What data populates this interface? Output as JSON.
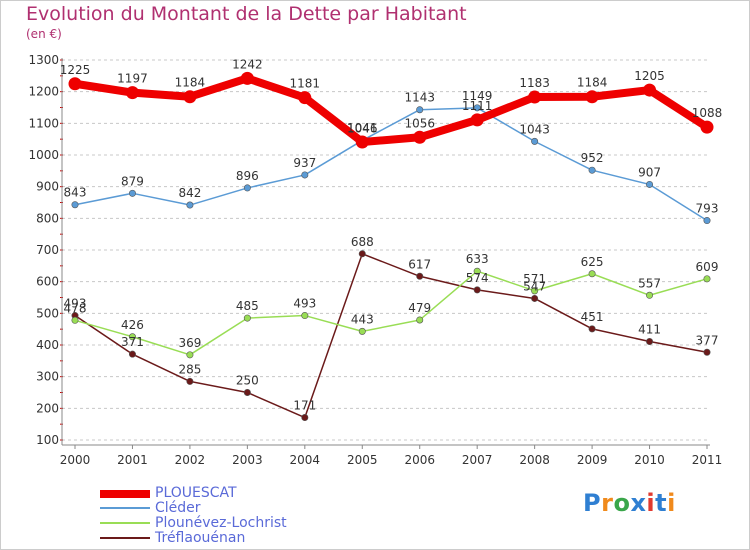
{
  "chart_data": {
    "type": "line",
    "title": "Evolution du Montant de la Dette par Habitant",
    "subtitle": "(en €)",
    "x": [
      2000,
      2001,
      2002,
      2003,
      2004,
      2005,
      2006,
      2007,
      2008,
      2009,
      2010,
      2011
    ],
    "ylim": [
      100,
      1300
    ],
    "yticks": [
      100,
      200,
      300,
      400,
      500,
      600,
      700,
      800,
      900,
      1000,
      1100,
      1200,
      1300
    ],
    "grid": "horizontal dashed",
    "legend_position": "bottom-left",
    "series": [
      {
        "name": "PLOUESCAT",
        "color": "#ee0000",
        "values": [
          1225,
          1197,
          1184,
          1242,
          1181,
          1041,
          1056,
          1111,
          1183,
          1184,
          1205,
          1088
        ]
      },
      {
        "name": "Cléder",
        "color": "#5b9bd5",
        "values": [
          843,
          879,
          842,
          896,
          937,
          1046,
          1143,
          1149,
          1043,
          952,
          907,
          793
        ]
      },
      {
        "name": "Plounévez-Lochrist",
        "color": "#99dd55",
        "values": [
          478,
          426,
          369,
          485,
          493,
          443,
          479,
          633,
          571,
          625,
          557,
          609
        ]
      },
      {
        "name": "Tréflaouénan",
        "color": "#6b1a1a",
        "values": [
          493,
          371,
          285,
          250,
          171,
          688,
          617,
          574,
          547,
          451,
          411,
          377
        ]
      }
    ]
  },
  "brand": {
    "letters": [
      "P",
      "r",
      "o",
      "x",
      "i",
      "t",
      "i"
    ],
    "colors": [
      "#2f7fd2",
      "#f08a1c",
      "#3aa64a",
      "#2f7fd2",
      "#e23a2f",
      "#2f7fd2",
      "#f08a1c"
    ]
  }
}
